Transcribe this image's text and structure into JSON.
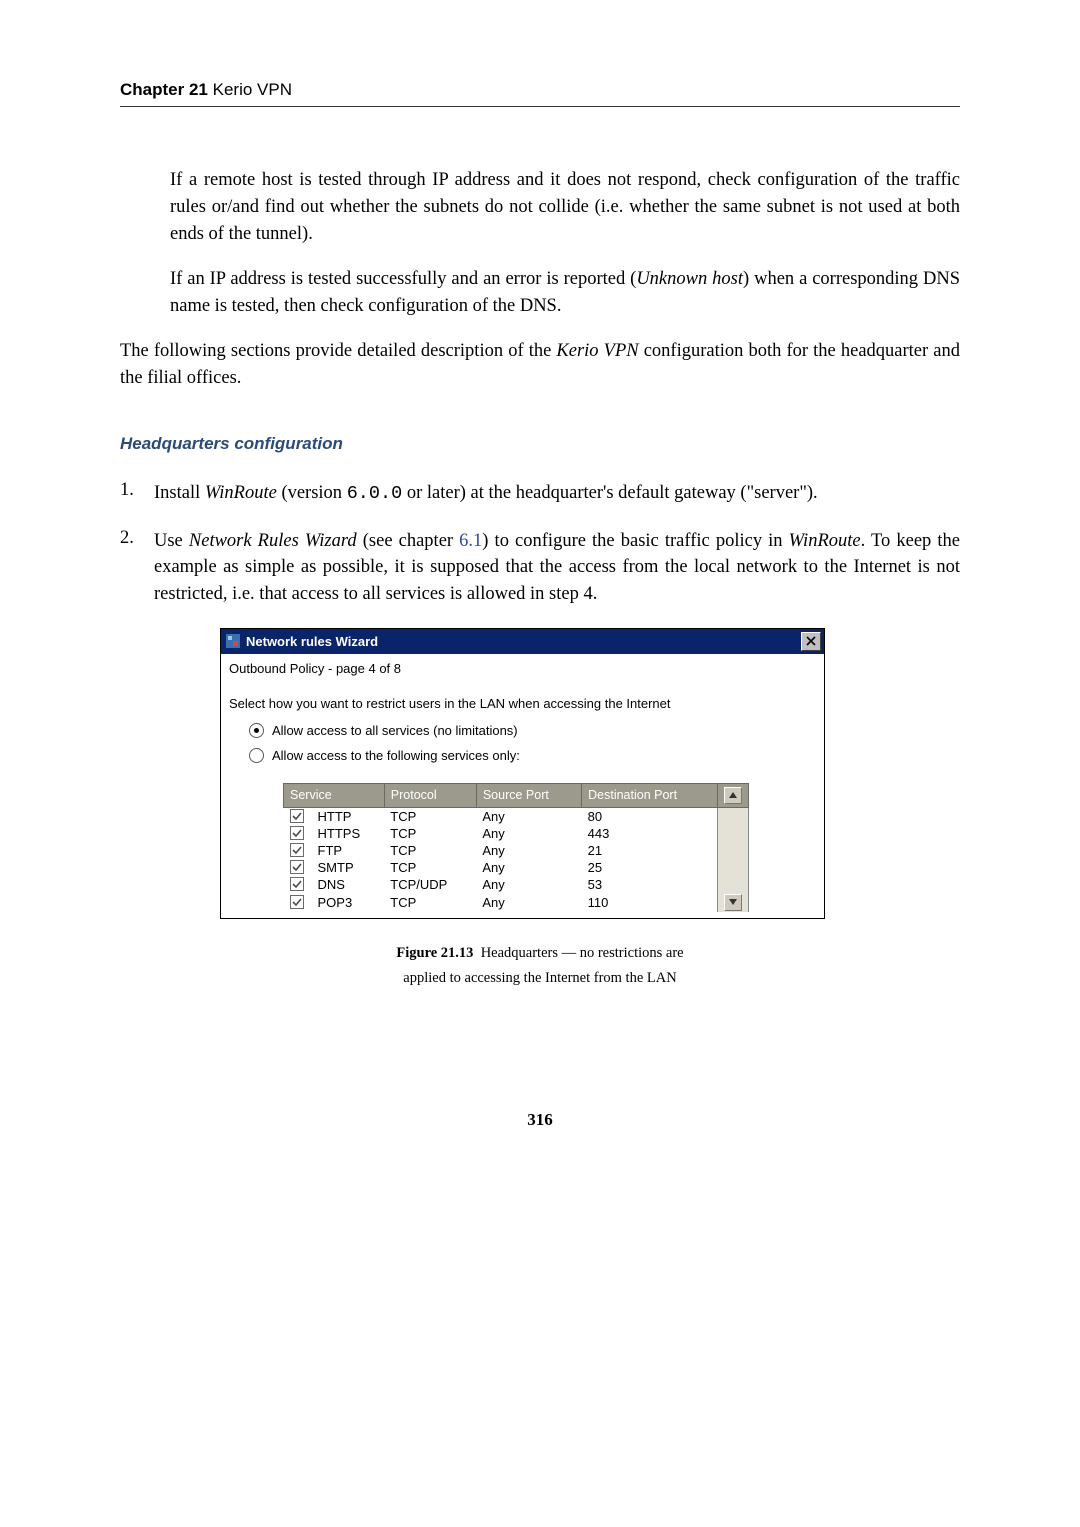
{
  "header": {
    "chapter_label": "Chapter 21",
    "chapter_name": "Kerio VPN"
  },
  "paragraphs": {
    "p1": "If a remote host is tested through IP address and it does not respond, check configuration of the traffic rules or/and find out whether the subnets do not collide (i.e. whether the same subnet is not used at both ends of the tunnel).",
    "p2_before": "If an IP address is tested successfully and an error is reported (",
    "p2_italic": "Unknown host",
    "p2_after": ") when a corresponding DNS name is tested, then check configuration of the DNS.",
    "p3_before": "The following sections provide detailed description of the ",
    "p3_italic": "Kerio VPN",
    "p3_after": " configuration both for the headquarter and the filial offices."
  },
  "section_heading": "Headquarters configuration",
  "list": {
    "item1_num": "1.",
    "item1_a": "Install ",
    "item1_i1": "WinRoute",
    "item1_b": " (version ",
    "item1_code": "6.0.0",
    "item1_c": " or later) at the headquarter's default gateway (\"server\").",
    "item2_num": "2.",
    "item2_a": "Use ",
    "item2_i1": "Network Rules Wizard",
    "item2_b": " (see chapter ",
    "item2_link": "6.1",
    "item2_c": ") to configure the basic traffic policy in ",
    "item2_i2": "WinRoute",
    "item2_d": ". To keep the example as simple as possible, it is supposed that the access from the local network to the Internet is not restricted, i.e. that access to all services is allowed in step 4."
  },
  "wizard": {
    "title": "Network rules Wizard",
    "page_label": "Outbound Policy - page 4 of 8",
    "instruction": "Select how you want to restrict users in the LAN when accessing the Internet",
    "radio1": {
      "label": "Allow access to all services (no limitations)",
      "selected": true
    },
    "radio2": {
      "label": "Allow access to the following services only:",
      "selected": false
    },
    "table": {
      "headers": {
        "service": "Service",
        "protocol": "Protocol",
        "source_port": "Source Port",
        "dest_port": "Destination Port"
      },
      "rows": [
        {
          "checked": true,
          "service": "HTTP",
          "protocol": "TCP",
          "src": "Any",
          "dst": "80"
        },
        {
          "checked": true,
          "service": "HTTPS",
          "protocol": "TCP",
          "src": "Any",
          "dst": "443"
        },
        {
          "checked": true,
          "service": "FTP",
          "protocol": "TCP",
          "src": "Any",
          "dst": "21"
        },
        {
          "checked": true,
          "service": "SMTP",
          "protocol": "TCP",
          "src": "Any",
          "dst": "25"
        },
        {
          "checked": true,
          "service": "DNS",
          "protocol": "TCP/UDP",
          "src": "Any",
          "dst": "53"
        },
        {
          "checked": true,
          "service": "POP3",
          "protocol": "TCP",
          "src": "Any",
          "dst": "110"
        }
      ]
    }
  },
  "figure": {
    "label": "Figure 21.13",
    "line1": "Headquarters — no restrictions are",
    "line2": "applied to accessing the Internet from the LAN"
  },
  "page_number": "316",
  "colors": {
    "heading": "#2b4a7a",
    "link": "#2b4a9a",
    "titlebar": "#0a246a",
    "th_bg": "#9c9a8c",
    "dialog_bg": "#f0f0ea"
  }
}
